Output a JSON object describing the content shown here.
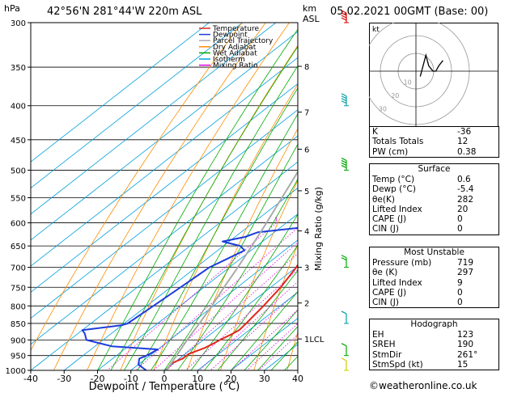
{
  "header": {
    "hpa_label": "hPa",
    "location": "42°56'N  281°44'W  220m  ASL",
    "km_label": "km",
    "asl_label": "ASL",
    "datetime": "05.02.2021  00GMT  (Base: 00)"
  },
  "chart_data": {
    "type": "line",
    "subtype": "skew-T log-P sounding",
    "xlabel": "Dewpoint / Temperature (°C)",
    "x_ticks": [
      -40,
      -30,
      -20,
      -10,
      0,
      10,
      20,
      30,
      40
    ],
    "xlim": [
      -40,
      40
    ],
    "ylabel_left": "hPa",
    "pressure_levels": [
      300,
      350,
      400,
      450,
      500,
      550,
      600,
      650,
      700,
      750,
      800,
      850,
      900,
      950,
      1000
    ],
    "ylim": [
      300,
      1000
    ],
    "y_scale": "log",
    "km_ticks": [
      {
        "p": 349,
        "label": "8"
      },
      {
        "p": 409,
        "label": "7"
      },
      {
        "p": 465,
        "label": "6"
      },
      {
        "p": 537,
        "label": "5"
      },
      {
        "p": 617,
        "label": "4"
      },
      {
        "p": 700,
        "label": "3"
      },
      {
        "p": 792,
        "label": "2"
      },
      {
        "p": 897,
        "label": "1LCL"
      }
    ],
    "mixing_ratio_label": "Mixing Ratio (g/kg)",
    "mixing_ratio_values": [
      "1",
      "2",
      "3",
      "4",
      "6",
      "8",
      "10",
      "15",
      "20",
      "25"
    ],
    "legend": [
      {
        "name": "Temperature",
        "color": "#e0281e"
      },
      {
        "name": "Dewpoint",
        "color": "#1e3cdc"
      },
      {
        "name": "Parcel Trajectory",
        "color": "#aaaaaa"
      },
      {
        "name": "Dry Adiabat",
        "color": "#ff8c00"
      },
      {
        "name": "Wet Adiabat",
        "color": "#00aa00"
      },
      {
        "name": "Isotherm",
        "color": "#00a0dc"
      },
      {
        "name": "Mixing Ratio",
        "color": "#dc00dc"
      }
    ],
    "series": [
      {
        "name": "Temperature",
        "points": [
          [
            1000,
            0.6
          ],
          [
            975,
            -0.5
          ],
          [
            960,
            1.0
          ],
          [
            945,
            1.0
          ],
          [
            925,
            3.5
          ],
          [
            910,
            4.5
          ],
          [
            900,
            5.0
          ],
          [
            880,
            6.5
          ],
          [
            870,
            7.0
          ],
          [
            850,
            6.5
          ],
          [
            800,
            5.0
          ],
          [
            750,
            3.0
          ],
          [
            700,
            0.0
          ],
          [
            650,
            -4.0
          ],
          [
            600,
            -8.0
          ],
          [
            550,
            -12.5
          ],
          [
            500,
            -18.0
          ],
          [
            450,
            -23.0
          ],
          [
            400,
            -30.0
          ],
          [
            350,
            -37.0
          ],
          [
            300,
            -45.0
          ]
        ]
      },
      {
        "name": "Dewpoint",
        "points": [
          [
            1000,
            -5.4
          ],
          [
            980,
            -10.0
          ],
          [
            960,
            -12.0
          ],
          [
            950,
            -11.0
          ],
          [
            930,
            -10.0
          ],
          [
            920,
            -25.0
          ],
          [
            900,
            -35.0
          ],
          [
            880,
            -38.0
          ],
          [
            870,
            -40.0
          ],
          [
            855,
            -30.0
          ],
          [
            850,
            -29.0
          ],
          [
            800,
            -28.0
          ],
          [
            750,
            -27.0
          ],
          [
            700,
            -26.0
          ],
          [
            680,
            -24.0
          ],
          [
            660,
            -22.0
          ],
          [
            650,
            -25.0
          ],
          [
            640,
            -32.0
          ],
          [
            630,
            -27.0
          ],
          [
            620,
            -25.0
          ],
          [
            610,
            -14.0
          ],
          [
            600,
            -12.5
          ],
          [
            580,
            -15.0
          ],
          [
            560,
            -16.0
          ],
          [
            540,
            -17.0
          ],
          [
            500,
            -21.0
          ],
          [
            480,
            -28.0
          ],
          [
            470,
            -33.0
          ],
          [
            450,
            -38.0
          ],
          [
            420,
            -50.0
          ],
          [
            400,
            -52.0
          ],
          [
            390,
            -50.0
          ],
          [
            370,
            -49.0
          ],
          [
            350,
            -50.0
          ],
          [
            340,
            -55.0
          ],
          [
            320,
            -57.0
          ],
          [
            300,
            -59.0
          ]
        ]
      },
      {
        "name": "Parcel Trajectory",
        "points": [
          [
            1000,
            0.6
          ],
          [
            950,
            -2.0
          ],
          [
            897,
            -5.0
          ],
          [
            850,
            -7.5
          ],
          [
            800,
            -10.5
          ],
          [
            750,
            -14.0
          ],
          [
            700,
            -17.5
          ],
          [
            650,
            -21.5
          ],
          [
            600,
            -26.0
          ],
          [
            550,
            -31.0
          ],
          [
            500,
            -36.5
          ],
          [
            450,
            -43.0
          ],
          [
            400,
            -50.5
          ],
          [
            350,
            -59.0
          ],
          [
            300,
            -68.0
          ]
        ]
      }
    ],
    "hodograph": {
      "label": "kt",
      "ring_labels": [
        "10",
        "20",
        "30"
      ],
      "trace_kt": [
        [
          3,
          -1
        ],
        [
          5,
          1
        ],
        [
          7,
          3
        ],
        [
          9,
          1
        ],
        [
          12,
          0
        ],
        [
          14,
          0
        ],
        [
          16,
          1
        ],
        [
          19,
          2
        ]
      ]
    },
    "wind_barbs": [
      {
        "p": 300,
        "dir": 300,
        "kt": 70,
        "color": "#dc0000"
      },
      {
        "p": 400,
        "dir": 290,
        "kt": 45,
        "color": "#00a0a0"
      },
      {
        "p": 500,
        "dir": 280,
        "kt": 35,
        "color": "#00aa00"
      },
      {
        "p": 700,
        "dir": 270,
        "kt": 15,
        "color": "#00aa00"
      },
      {
        "p": 850,
        "dir": 260,
        "kt": 10,
        "color": "#00a0a0"
      },
      {
        "p": 950,
        "dir": 250,
        "kt": 10,
        "color": "#00aa00"
      },
      {
        "p": 1000,
        "dir": 240,
        "kt": 5,
        "color": "#cccc00"
      }
    ]
  },
  "indices": {
    "rows": [
      {
        "label": "K",
        "value": "-36"
      },
      {
        "label": "Totals Totals",
        "value": "12"
      },
      {
        "label": "PW (cm)",
        "value": "0.38"
      }
    ]
  },
  "surface": {
    "title": "Surface",
    "rows": [
      {
        "label": "Temp (°C)",
        "value": "0.6"
      },
      {
        "label": "Dewp (°C)",
        "value": "-5.4"
      },
      {
        "label": "θe(K)",
        "value": "282"
      },
      {
        "label": "Lifted Index",
        "value": "20"
      },
      {
        "label": "CAPE (J)",
        "value": "0"
      },
      {
        "label": "CIN (J)",
        "value": "0"
      }
    ]
  },
  "most_unstable": {
    "title": "Most Unstable",
    "rows": [
      {
        "label": "Pressure (mb)",
        "value": "719"
      },
      {
        "label": "θe (K)",
        "value": "297"
      },
      {
        "label": "Lifted Index",
        "value": "9"
      },
      {
        "label": "CAPE (J)",
        "value": "0"
      },
      {
        "label": "CIN (J)",
        "value": "0"
      }
    ]
  },
  "hodograph_table": {
    "title": "Hodograph",
    "rows": [
      {
        "label": "EH",
        "value": "123"
      },
      {
        "label": "SREH",
        "value": "190"
      },
      {
        "label": "StmDir",
        "value": "261°"
      },
      {
        "label": "StmSpd (kt)",
        "value": "15"
      }
    ]
  },
  "footer": {
    "copyright_symbol": "©",
    "credit": "weatheronline.co.uk"
  }
}
